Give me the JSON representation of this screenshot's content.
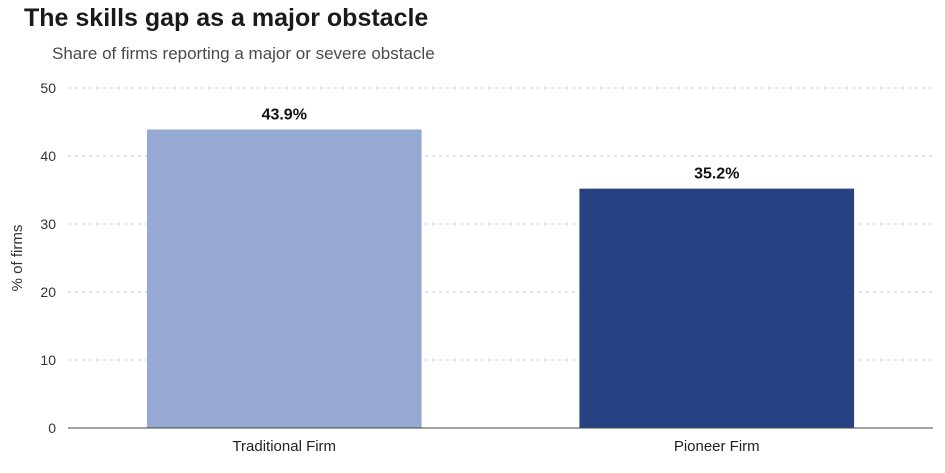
{
  "header": {
    "title": "The skills gap as a major obstacle",
    "subtitle": "Share of firms reporting a major or severe obstacle"
  },
  "chart_data": {
    "type": "bar",
    "title": "The skills gap as a major obstacle",
    "subtitle": "Share of firms reporting a major or severe obstacle",
    "categories": [
      "Traditional Firm",
      "Pioneer Firm"
    ],
    "values": [
      43.9,
      35.2
    ],
    "data_labels": [
      "43.9%",
      "35.2%"
    ],
    "bar_colors": [
      "#95a9d2",
      "#264283"
    ],
    "xlabel": "",
    "ylabel": "% of firms",
    "ylim": [
      0,
      50
    ],
    "yticks": [
      0,
      10,
      20,
      30,
      40,
      50
    ],
    "grid": true,
    "legend": "none"
  }
}
